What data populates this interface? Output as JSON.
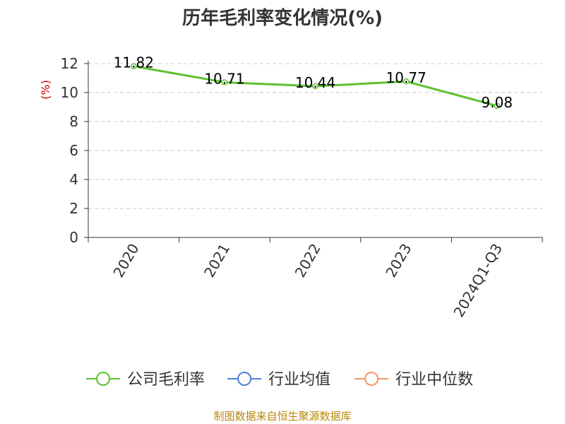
{
  "chart_data": {
    "type": "line",
    "title": "历年毛利率变化情况(%)",
    "ylabel": "(%)",
    "xlabel": "",
    "categories": [
      "2020",
      "2021",
      "2022",
      "2023",
      "2024Q1-Q3"
    ],
    "ylim": [
      0,
      12
    ],
    "yticks": [
      0,
      2,
      4,
      6,
      8,
      10,
      12
    ],
    "grid": true,
    "series": [
      {
        "name": "公司毛利率",
        "values": [
          11.82,
          10.71,
          10.44,
          10.77,
          9.08
        ],
        "color": "#5cc12e",
        "data_labels": [
          "11.82",
          "10.71",
          "10.44",
          "10.77",
          "9.08"
        ]
      }
    ],
    "legend": {
      "position": "bottom",
      "items": [
        {
          "name": "公司毛利率",
          "color": "#5cc12e"
        },
        {
          "name": "行业均值",
          "color": "#4d7fd9"
        },
        {
          "name": "行业中位数",
          "color": "#f39a66"
        }
      ]
    },
    "source": "制图数据来自恒生聚源数据库"
  }
}
